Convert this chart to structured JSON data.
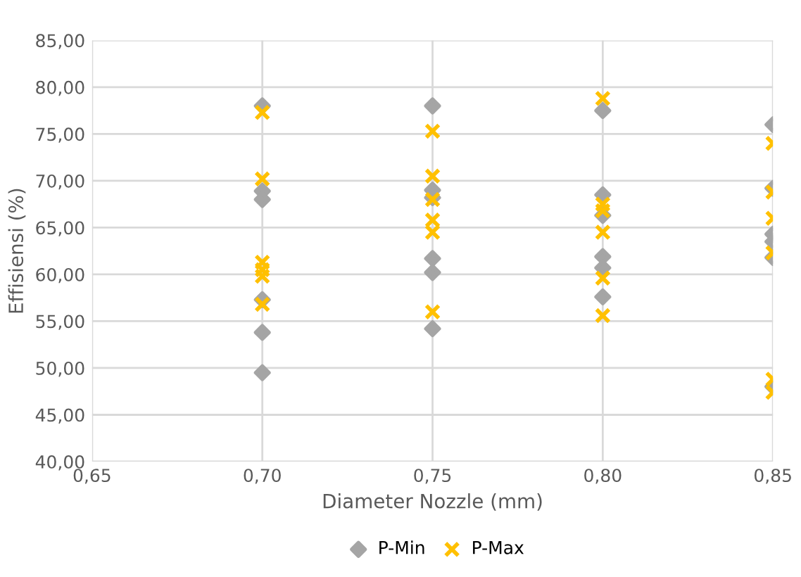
{
  "chart_data": {
    "type": "scatter",
    "xlabel": "Diameter Nozzle (mm)",
    "ylabel": "Effisiensi (%)",
    "series": [
      {
        "name": "P-Min",
        "color": "#a5a5a5",
        "marker": "diamond",
        "x": [
          0.7,
          0.7,
          0.7,
          0.7,
          0.7,
          0.7,
          0.75,
          0.75,
          0.75,
          0.75,
          0.75,
          0.75,
          0.8,
          0.8,
          0.8,
          0.8,
          0.8,
          0.8,
          0.85,
          0.85,
          0.85,
          0.85,
          0.85,
          0.85
        ],
        "values": [
          78.0,
          68.9,
          68.0,
          57.3,
          53.8,
          49.5,
          78.0,
          69.0,
          68.2,
          61.7,
          60.2,
          54.2,
          77.5,
          68.5,
          66.3,
          61.9,
          60.7,
          57.6,
          76.0,
          69.2,
          64.3,
          63.5,
          61.8,
          48.0
        ]
      },
      {
        "name": "P-Max",
        "color": "#ffc000",
        "marker": "cross",
        "x": [
          0.7,
          0.7,
          0.7,
          0.7,
          0.7,
          0.7,
          0.75,
          0.75,
          0.75,
          0.75,
          0.75,
          0.75,
          0.8,
          0.8,
          0.8,
          0.8,
          0.8,
          0.8,
          0.85,
          0.85,
          0.85,
          0.85,
          0.85,
          0.85
        ],
        "values": [
          77.3,
          70.2,
          61.3,
          60.5,
          59.8,
          56.8,
          75.3,
          70.5,
          68.0,
          65.8,
          64.5,
          56.0,
          78.8,
          67.5,
          66.8,
          64.5,
          59.6,
          55.6,
          74.0,
          68.8,
          66.0,
          62.3,
          48.8,
          47.4
        ]
      }
    ],
    "xlim": [
      0.65,
      0.85
    ],
    "xticks": [
      {
        "value": 0.65,
        "label": "0,65"
      },
      {
        "value": 0.7,
        "label": "0,70"
      },
      {
        "value": 0.75,
        "label": "0,75"
      },
      {
        "value": 0.8,
        "label": "0,80"
      },
      {
        "value": 0.85,
        "label": "0,85"
      }
    ],
    "ylim": [
      40,
      85
    ],
    "yticks": [
      {
        "value": 40,
        "label": "40,00"
      },
      {
        "value": 45,
        "label": "45,00"
      },
      {
        "value": 50,
        "label": "50,00"
      },
      {
        "value": 55,
        "label": "55,00"
      },
      {
        "value": 60,
        "label": "60,00"
      },
      {
        "value": 65,
        "label": "65,00"
      },
      {
        "value": 70,
        "label": "70,00"
      },
      {
        "value": 75,
        "label": "75,00"
      },
      {
        "value": 80,
        "label": "80,00"
      },
      {
        "value": 85,
        "label": "85,00"
      }
    ],
    "grid": true,
    "legend": "bottom"
  }
}
